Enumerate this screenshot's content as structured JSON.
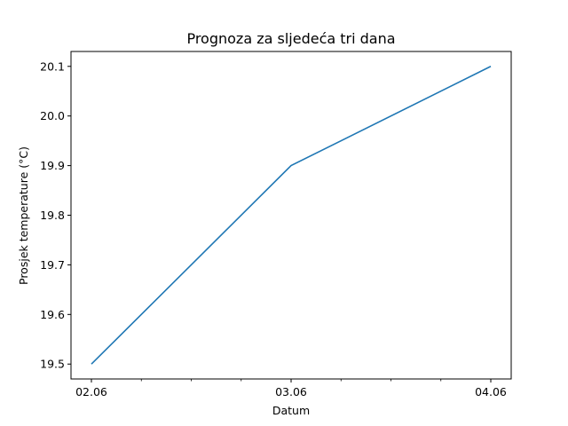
{
  "chart_data": {
    "type": "line",
    "title": "Prognoza za sljedeća tri dana",
    "xlabel": "Datum",
    "ylabel": "Prosjek temperature (°C)",
    "x": [
      "02.06",
      "03.06",
      "04.06"
    ],
    "series": [
      {
        "values": [
          19.5,
          19.9,
          20.1
        ],
        "color": "#1f77b4"
      }
    ],
    "yticks": [
      "19.5",
      "19.6",
      "19.7",
      "19.8",
      "19.9",
      "20.0",
      "20.1"
    ],
    "ylim": [
      19.47,
      20.13
    ],
    "grid": false,
    "legend": "none"
  }
}
